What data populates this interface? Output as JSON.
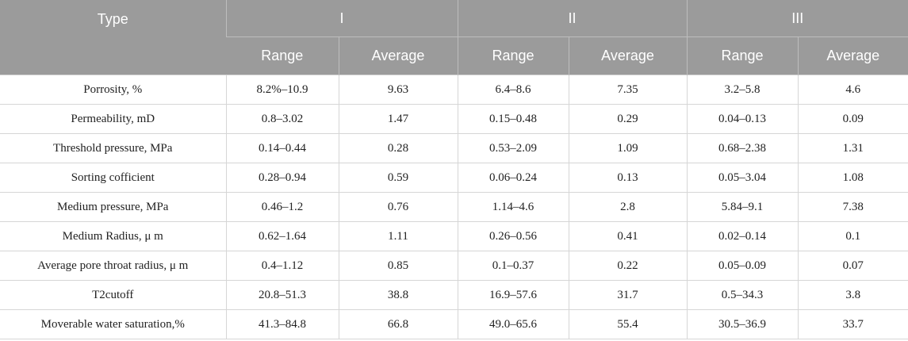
{
  "table": {
    "header": {
      "type_label": "Type",
      "groups": [
        "I",
        "II",
        "III"
      ],
      "sub_range": "Range",
      "sub_average": "Average"
    },
    "rows": [
      {
        "label": "Porrosity, %",
        "values": [
          "8.2%–10.9",
          "9.63",
          "6.4–8.6",
          "7.35",
          "3.2–5.8",
          "4.6"
        ]
      },
      {
        "label": "Permeability, mD",
        "values": [
          "0.8–3.02",
          "1.47",
          "0.15–0.48",
          "0.29",
          "0.04–0.13",
          "0.09"
        ]
      },
      {
        "label": "Threshold pressure, MPa",
        "values": [
          "0.14–0.44",
          "0.28",
          "0.53–2.09",
          "1.09",
          "0.68–2.38",
          "1.31"
        ]
      },
      {
        "label": "Sorting cofficient",
        "values": [
          "0.28–0.94",
          "0.59",
          "0.06–0.24",
          "0.13",
          "0.05–3.04",
          "1.08"
        ]
      },
      {
        "label": "Medium pressure, MPa",
        "values": [
          "0.46–1.2",
          "0.76",
          "1.14–4.6",
          "2.8",
          "5.84–9.1",
          "7.38"
        ]
      },
      {
        "label": "Medium Radius, μ m",
        "values": [
          "0.62–1.64",
          "1.11",
          "0.26–0.56",
          "0.41",
          "0.02–0.14",
          "0.1"
        ]
      },
      {
        "label": "Average pore throat radius, μ m",
        "values": [
          "0.4–1.12",
          "0.85",
          "0.1–0.37",
          "0.22",
          "0.05–0.09",
          "0.07"
        ]
      },
      {
        "label": "T2cutoff",
        "values": [
          "20.8–51.3",
          "38.8",
          "16.9–57.6",
          "31.7",
          "0.5–34.3",
          "3.8"
        ]
      },
      {
        "label": "Moverable water saturation,%",
        "values": [
          "41.3–84.8",
          "66.8",
          "49.0–65.6",
          "55.4",
          "30.5–36.9",
          "33.7"
        ]
      }
    ]
  }
}
